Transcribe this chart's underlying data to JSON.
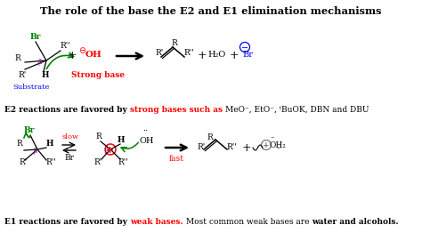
{
  "title": "The role of the base the E2 and E1 elimination mechanisms",
  "bg": "white",
  "e2_line": [
    [
      "E2 reactions are favored by ",
      "black",
      true
    ],
    [
      "strong bases such as ",
      "red",
      true
    ],
    [
      "MeO⁻, EtO⁻, ᵗBuOK, DBN and DBU",
      "black",
      false
    ]
  ],
  "e1_line": [
    [
      "E1 reactions are favored by ",
      "black",
      true
    ],
    [
      "weak bases.",
      "red",
      true
    ],
    [
      " Most common weak bases are ",
      "black",
      false
    ],
    [
      "water and alcohols.",
      "black",
      true
    ]
  ]
}
